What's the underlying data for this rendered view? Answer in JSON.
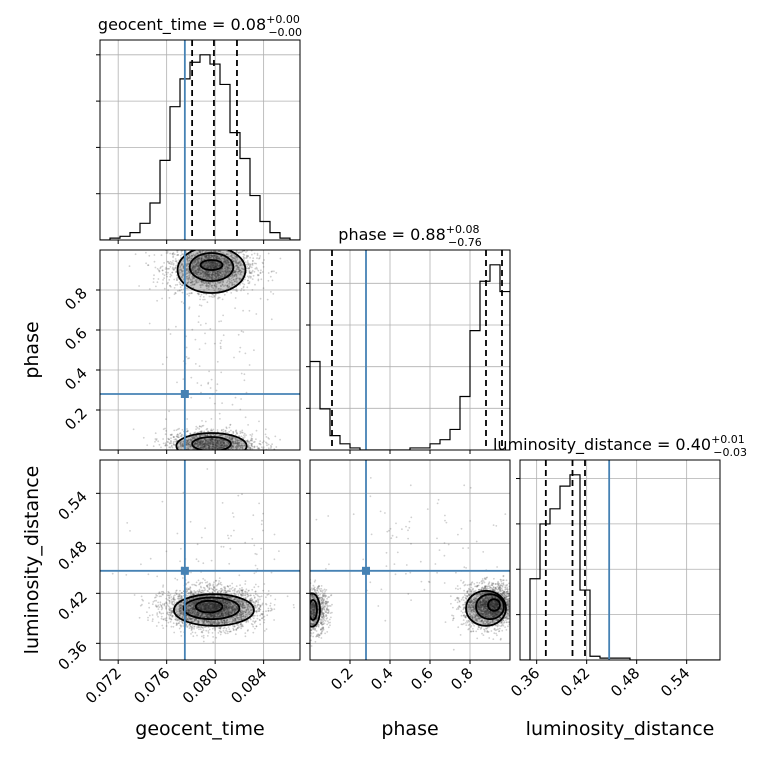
{
  "chart_data": {
    "type": "corner",
    "truth_color": "#4682b4",
    "params": [
      {
        "name": "geocent_time",
        "label": "geocent_time",
        "range": [
          0.0705,
          0.087
        ],
        "ticks": [
          0.072,
          0.076,
          0.08,
          0.084
        ],
        "tick_labels": [
          "0.072",
          "0.076",
          "0.080",
          "0.084"
        ],
        "truth": 0.0775,
        "quantiles": [
          0.0781,
          0.0799,
          0.0818
        ],
        "title": {
          "main": "geocent_time = 0.08",
          "up": "+0.00",
          "down": "−0.00"
        },
        "hist": [
          0.0,
          0.01,
          0.02,
          0.04,
          0.09,
          0.2,
          0.43,
          0.72,
          0.87,
          0.96,
          1.0,
          0.95,
          0.84,
          0.58,
          0.44,
          0.24,
          0.1,
          0.04,
          0.01,
          0.0
        ]
      },
      {
        "name": "phase",
        "label": "phase",
        "range": [
          0.0,
          1.0
        ],
        "ticks": [
          0.2,
          0.4,
          0.6,
          0.8
        ],
        "tick_labels": [
          "0.2",
          "0.4",
          "0.6",
          "0.8"
        ],
        "truth": 0.28,
        "quantiles": [
          0.11,
          0.88,
          0.96
        ],
        "title": {
          "main": "phase = 0.88",
          "up": "+0.08",
          "down": "−0.76"
        },
        "hist": [
          0.43,
          0.2,
          0.07,
          0.03,
          0.01,
          0.0,
          0.0,
          0.0,
          0.0,
          0.0,
          0.01,
          0.01,
          0.03,
          0.05,
          0.1,
          0.26,
          0.58,
          0.82,
          0.9,
          0.77
        ]
      },
      {
        "name": "luminosity_distance",
        "label": "luminosity_distance",
        "range": [
          0.34,
          0.58
        ],
        "ticks": [
          0.36,
          0.42,
          0.48,
          0.54
        ],
        "tick_labels": [
          "0.36",
          "0.42",
          "0.48",
          "0.54"
        ],
        "truth": 0.447,
        "quantiles": [
          0.371,
          0.403,
          0.418
        ],
        "title": {
          "main": "luminosity_distance = 0.40",
          "up": "+0.01",
          "down": "−0.03"
        },
        "hist": [
          0.0,
          0.43,
          0.72,
          0.8,
          0.92,
          0.98,
          0.37,
          0.02,
          0.01,
          0.01,
          0.01,
          0.0,
          0.0,
          0.0,
          0.0,
          0.0,
          0.0,
          0.0,
          0.0,
          0.0
        ]
      }
    ],
    "pairs": [
      {
        "x": "geocent_time",
        "y": "phase",
        "blobs": [
          {
            "cx": 0.0797,
            "cy": 0.91,
            "sx": 0.0018,
            "sy": 0.06,
            "n": 1800
          },
          {
            "cx": 0.0797,
            "cy": 0.03,
            "sx": 0.0019,
            "sy": 0.035,
            "n": 1400
          },
          {
            "cx": 0.0797,
            "cy": 0.5,
            "sx": 0.0022,
            "sy": 0.3,
            "n": 120
          }
        ],
        "contours": [
          {
            "cx": 0.0797,
            "cy": 0.925,
            "rx": 0.0009,
            "ry": 0.025
          },
          {
            "cx": 0.0797,
            "cy": 0.915,
            "rx": 0.0018,
            "ry": 0.07
          },
          {
            "cx": 0.0797,
            "cy": 0.9,
            "rx": 0.0028,
            "ry": 0.115
          },
          {
            "cx": 0.0797,
            "cy": 0.03,
            "rx": 0.0016,
            "ry": 0.035
          },
          {
            "cx": 0.0797,
            "cy": 0.02,
            "rx": 0.0029,
            "ry": 0.065
          }
        ]
      },
      {
        "x": "geocent_time",
        "y": "luminosity_distance",
        "blobs": [
          {
            "cx": 0.0797,
            "cy": 0.402,
            "sx": 0.0019,
            "sy": 0.012,
            "n": 3000
          },
          {
            "cx": 0.0797,
            "cy": 0.47,
            "sx": 0.003,
            "sy": 0.04,
            "n": 80
          }
        ],
        "contours": [
          {
            "cx": 0.0795,
            "cy": 0.404,
            "rx": 0.0011,
            "ry": 0.007
          },
          {
            "cx": 0.0797,
            "cy": 0.402,
            "rx": 0.0023,
            "ry": 0.013
          },
          {
            "cx": 0.0799,
            "cy": 0.4,
            "rx": 0.0033,
            "ry": 0.019
          }
        ]
      },
      {
        "x": "phase",
        "y": "luminosity_distance",
        "blobs": [
          {
            "cx": 0.91,
            "cy": 0.405,
            "sx": 0.07,
            "sy": 0.013,
            "n": 2200
          },
          {
            "cx": 0.02,
            "cy": 0.4,
            "sx": 0.035,
            "sy": 0.013,
            "n": 900
          },
          {
            "cx": 0.6,
            "cy": 0.47,
            "sx": 0.3,
            "sy": 0.045,
            "n": 90
          }
        ],
        "contours": [
          {
            "cx": 0.92,
            "cy": 0.406,
            "rx": 0.03,
            "ry": 0.007
          },
          {
            "cx": 0.9,
            "cy": 0.404,
            "rx": 0.07,
            "ry": 0.015
          },
          {
            "cx": 0.88,
            "cy": 0.402,
            "rx": 0.1,
            "ry": 0.021
          },
          {
            "cx": 0.015,
            "cy": 0.4,
            "rx": 0.02,
            "ry": 0.012
          },
          {
            "cx": 0.01,
            "cy": 0.4,
            "rx": 0.04,
            "ry": 0.02
          }
        ]
      }
    ]
  }
}
